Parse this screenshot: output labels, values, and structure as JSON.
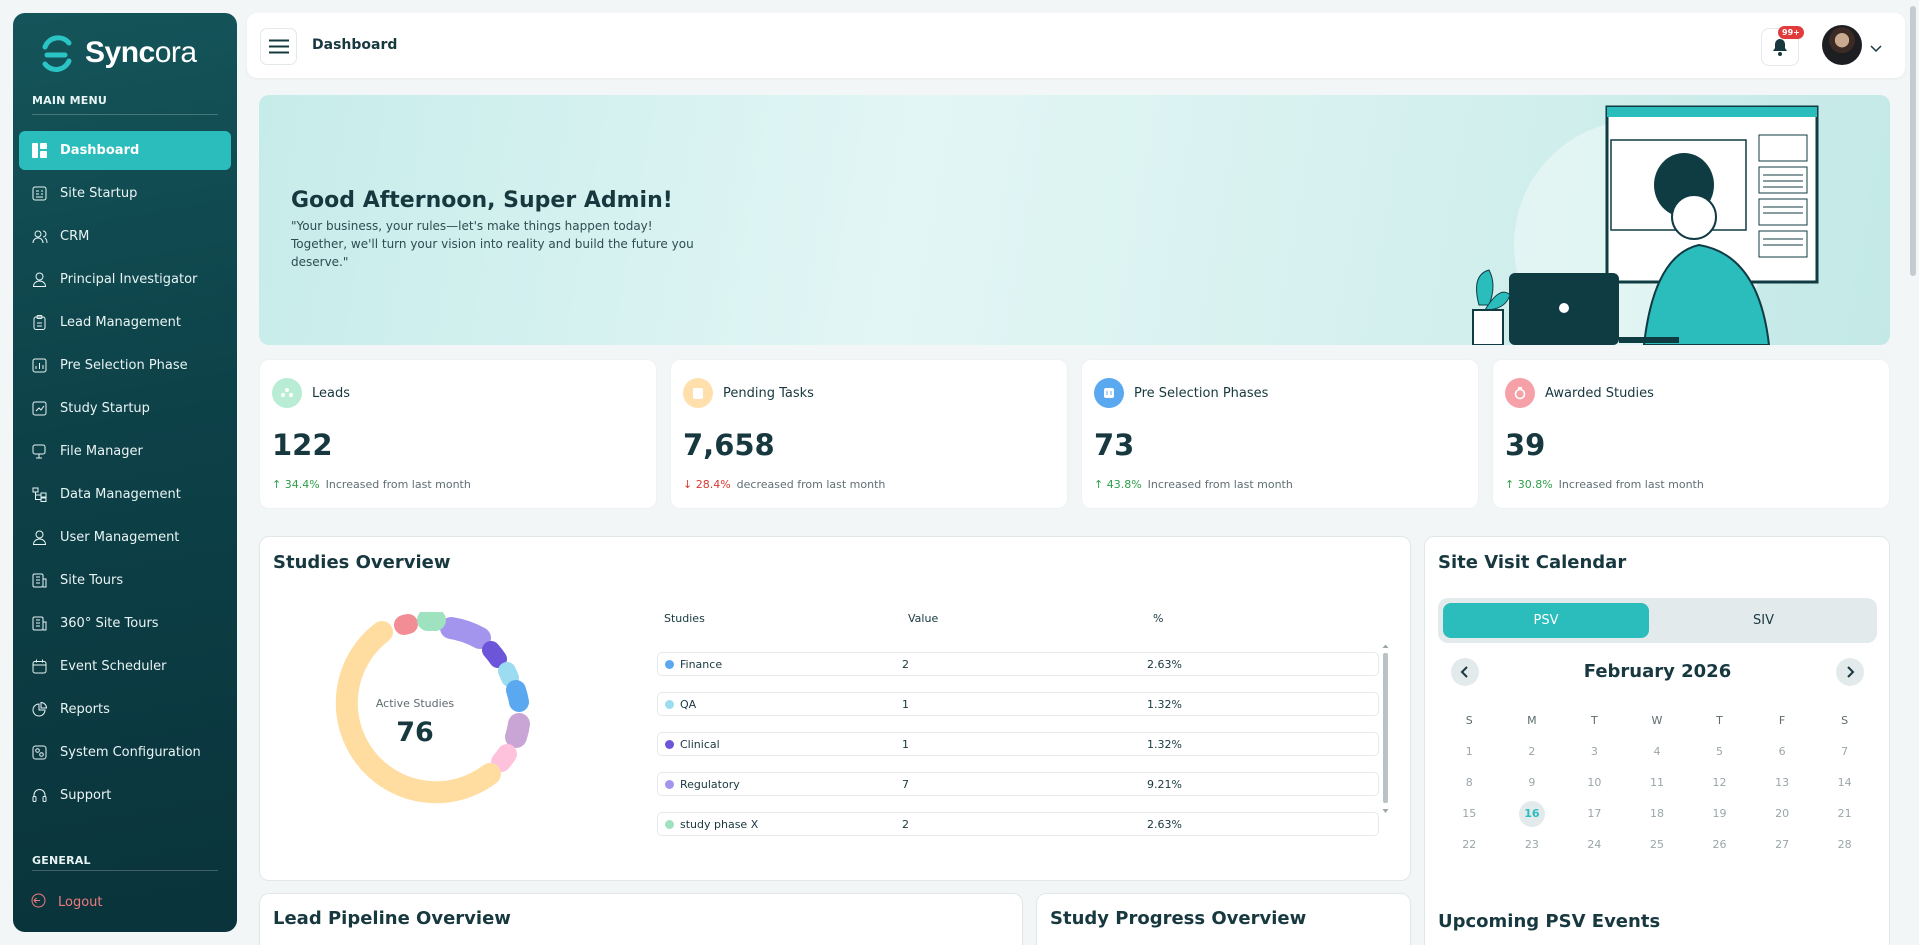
{
  "app": {
    "brand_bold": "Sync",
    "brand_light": "ora"
  },
  "sidebar": {
    "main_menu_label": "MAIN MENU",
    "general_label": "GENERAL",
    "items": [
      {
        "label": "Dashboard",
        "icon": "dashboard-icon"
      },
      {
        "label": "Site Startup",
        "icon": "building-icon"
      },
      {
        "label": "CRM",
        "icon": "users-icon"
      },
      {
        "label": "Principal Investigator",
        "icon": "user-icon"
      },
      {
        "label": "Lead Management",
        "icon": "clipboard-icon"
      },
      {
        "label": "Pre Selection Phase",
        "icon": "chart-doc-icon"
      },
      {
        "label": "Study Startup",
        "icon": "study-icon"
      },
      {
        "label": "File Manager",
        "icon": "file-icon"
      },
      {
        "label": "Data Management",
        "icon": "hierarchy-icon"
      },
      {
        "label": "User Management",
        "icon": "user-icon"
      },
      {
        "label": "Site Tours",
        "icon": "tour-icon"
      },
      {
        "label": "360° Site Tours",
        "icon": "tour-icon"
      },
      {
        "label": "Event Scheduler",
        "icon": "calendar-icon"
      },
      {
        "label": "Reports",
        "icon": "pie-icon"
      },
      {
        "label": "System Configuration",
        "icon": "settings-icon"
      },
      {
        "label": "Support",
        "icon": "headset-icon"
      }
    ],
    "logout_label": "Logout"
  },
  "topbar": {
    "title": "Dashboard",
    "notification_count": "99+"
  },
  "hero": {
    "title": "Good Afternoon, Super Admin!",
    "subtitle": "\"Your business, your rules—let's make things happen today! Together, we'll turn your vision into reality and build the future you deserve.\""
  },
  "stats": [
    {
      "label": "Leads",
      "value": "122",
      "change": "34.4%",
      "direction": "up",
      "note": "Increased from last month",
      "color": "#8fd9b8"
    },
    {
      "label": "Pending Tasks",
      "value": "7,658",
      "change": "28.4%",
      "direction": "down",
      "note": "decreased from last month",
      "color": "#ffd79a"
    },
    {
      "label": "Pre Selection Phases",
      "value": "73",
      "change": "43.8%",
      "direction": "up",
      "note": "Increased from last month",
      "color": "#5aa9f0"
    },
    {
      "label": "Awarded Studies",
      "value": "39",
      "change": "30.8%",
      "direction": "up",
      "note": "Increased from last month",
      "color": "#f28c95"
    }
  ],
  "studies": {
    "title": "Studies Overview",
    "center_label": "Active Studies",
    "center_value": "76",
    "columns": [
      "Studies",
      "Value",
      "%"
    ],
    "rows": [
      {
        "name": "Finance",
        "value": "2",
        "pct": "2.63%",
        "color": "#5aa9f0"
      },
      {
        "name": "QA",
        "value": "1",
        "pct": "1.32%",
        "color": "#9bdcf0"
      },
      {
        "name": "Clinical",
        "value": "1",
        "pct": "1.32%",
        "color": "#6c55d8"
      },
      {
        "name": "Regulatory",
        "value": "7",
        "pct": "9.21%",
        "color": "#a394ee"
      },
      {
        "name": "study phase X",
        "value": "2",
        "pct": "2.63%",
        "color": "#9ee2c0"
      }
    ]
  },
  "calendar": {
    "title": "Site Visit Calendar",
    "tabs": [
      "PSV",
      "SIV"
    ],
    "month": "February 2026",
    "weekdays": [
      "S",
      "M",
      "T",
      "W",
      "T",
      "F",
      "S"
    ],
    "weeks": [
      [
        "1",
        "2",
        "3",
        "4",
        "5",
        "6",
        "7"
      ],
      [
        "8",
        "9",
        "10",
        "11",
        "12",
        "13",
        "14"
      ],
      [
        "15",
        "16",
        "17",
        "18",
        "19",
        "20",
        "21"
      ],
      [
        "22",
        "23",
        "24",
        "25",
        "26",
        "27",
        "28"
      ]
    ],
    "today": "16",
    "upcoming_title": "Upcoming PSV Events"
  },
  "panels": {
    "lead_pipeline": "Lead Pipeline Overview",
    "study_progress": "Study Progress Overview"
  }
}
